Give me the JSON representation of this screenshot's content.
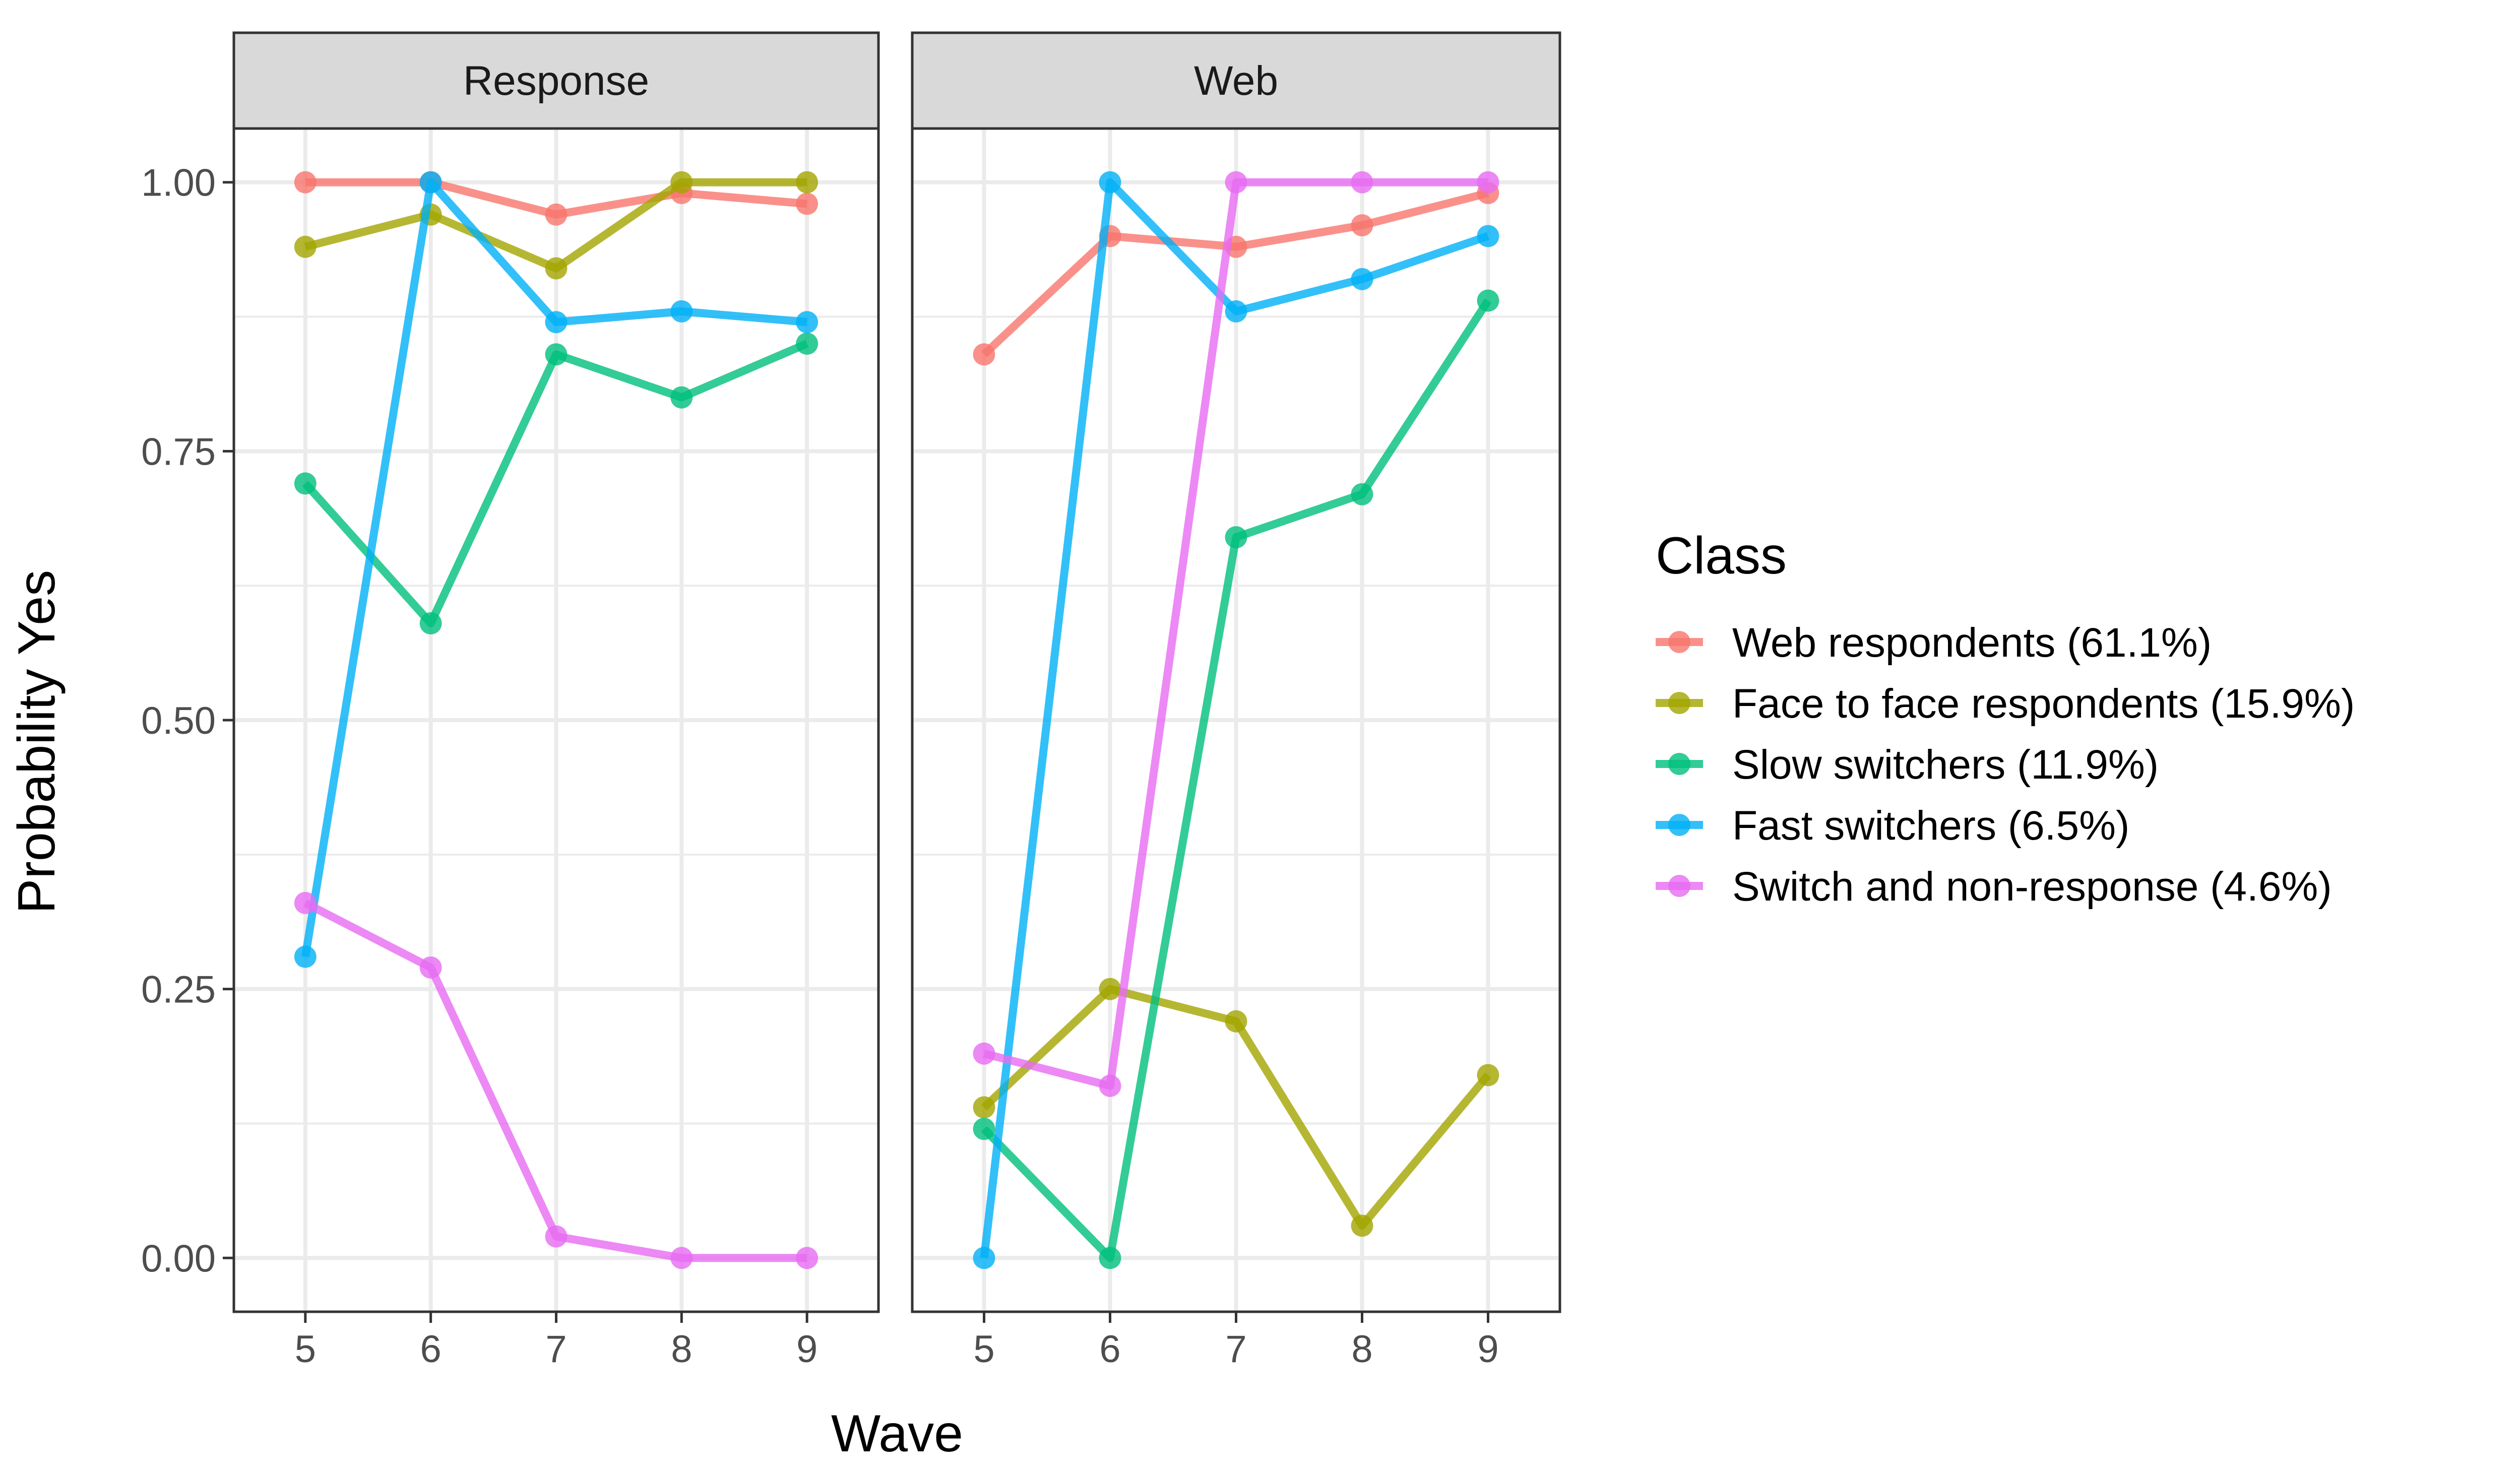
{
  "chart_data": {
    "type": "line",
    "panels": [
      "Response",
      "Web"
    ],
    "xlabel": "Wave",
    "ylabel": "Probability Yes",
    "x": [
      5,
      6,
      7,
      8,
      9
    ],
    "xticks": [
      "5",
      "6",
      "7",
      "8",
      "9"
    ],
    "yticks": [
      "0.00",
      "0.25",
      "0.50",
      "0.75",
      "1.00"
    ],
    "ylim": [
      -0.05,
      1.05
    ],
    "xlim": [
      4.43,
      9.57
    ],
    "grid": true,
    "legend": {
      "title": "Class",
      "placement": "right"
    },
    "series": [
      {
        "name": "Web respondents (61.1%)",
        "color": "#F8766D",
        "values": {
          "Response": [
            1.0,
            1.0,
            0.97,
            0.99,
            0.98
          ],
          "Web": [
            0.84,
            0.95,
            0.94,
            0.96,
            0.99
          ]
        }
      },
      {
        "name": "Face to face respondents (15.9%)",
        "color": "#A3A500",
        "values": {
          "Response": [
            0.94,
            0.97,
            0.92,
            1.0,
            1.0
          ],
          "Web": [
            0.14,
            0.25,
            0.22,
            0.03,
            0.17
          ]
        }
      },
      {
        "name": "Slow switchers (11.9%)",
        "color": "#00BF7D",
        "values": {
          "Response": [
            0.72,
            0.59,
            0.84,
            0.8,
            0.85
          ],
          "Web": [
            0.12,
            0.0,
            0.67,
            0.71,
            0.89
          ]
        }
      },
      {
        "name": "Fast switchers (6.5%)",
        "color": "#00B0F6",
        "values": {
          "Response": [
            0.28,
            1.0,
            0.87,
            0.88,
            0.87
          ],
          "Web": [
            0.0,
            1.0,
            0.88,
            0.91,
            0.95
          ]
        }
      },
      {
        "name": "Switch and non-response (4.6%)",
        "color": "#E76BF3",
        "values": {
          "Response": [
            0.33,
            0.27,
            0.02,
            0.0,
            0.0
          ],
          "Web": [
            0.19,
            0.16,
            1.0,
            1.0,
            1.0
          ]
        }
      }
    ]
  }
}
